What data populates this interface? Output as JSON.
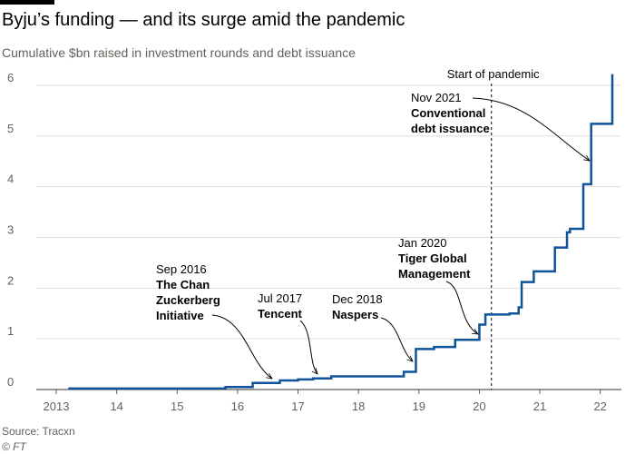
{
  "chart_data": {
    "type": "step",
    "title": "Byju’s funding — and its surge amid the pandemic",
    "subtitle": "Cumulative $bn raised in investment rounds and debt issuance",
    "source": "Source: Tracxn",
    "credit": "© FT",
    "color": "#0f5499",
    "x": [
      2013.2,
      2015.8,
      2016.25,
      2016.7,
      2017.0,
      2017.25,
      2017.55,
      2018.75,
      2018.95,
      2019.25,
      2019.6,
      2020.0,
      2020.1,
      2020.5,
      2020.65,
      2020.7,
      2020.9,
      2021.25,
      2021.45,
      2021.5,
      2021.72,
      2021.85,
      2022.2
    ],
    "values": [
      0.02,
      0.05,
      0.13,
      0.18,
      0.2,
      0.22,
      0.26,
      0.35,
      0.8,
      0.84,
      0.98,
      1.28,
      1.48,
      1.5,
      1.62,
      2.12,
      2.33,
      2.8,
      3.1,
      3.17,
      4.05,
      5.24,
      6.22
    ],
    "xlim": [
      2012.67,
      2022.35
    ],
    "ylim": [
      0,
      6.25
    ],
    "xticks": [
      2013,
      {
        "value": 2014,
        "label": "14"
      },
      {
        "value": 2015,
        "label": "15"
      },
      {
        "value": 2016,
        "label": "16"
      },
      {
        "value": 2017,
        "label": "17"
      },
      {
        "value": 2018,
        "label": "18"
      },
      {
        "value": 2019,
        "label": "19"
      },
      {
        "value": 2020,
        "label": "20"
      },
      {
        "value": 2021,
        "label": "21"
      },
      {
        "value": 2022,
        "label": "22"
      }
    ],
    "yticks": [
      0,
      1,
      2,
      3,
      4,
      5,
      6
    ],
    "grid": true,
    "pandemic_line": {
      "x": 2020.2,
      "label": "Start of pandemic"
    },
    "annotations": [
      {
        "date": "Sep 2016",
        "name": [
          "The Chan",
          "Zuckerberg",
          "Initiative"
        ]
      },
      {
        "date": "Jul 2017",
        "name": [
          "Tencent"
        ]
      },
      {
        "date": "Dec 2018",
        "name": [
          "Naspers"
        ]
      },
      {
        "date": "Jan 2020",
        "name": [
          "Tiger Global",
          "Management"
        ]
      },
      {
        "date": "Nov 2021",
        "name": [
          "Conventional",
          "debt issuance"
        ]
      }
    ]
  }
}
